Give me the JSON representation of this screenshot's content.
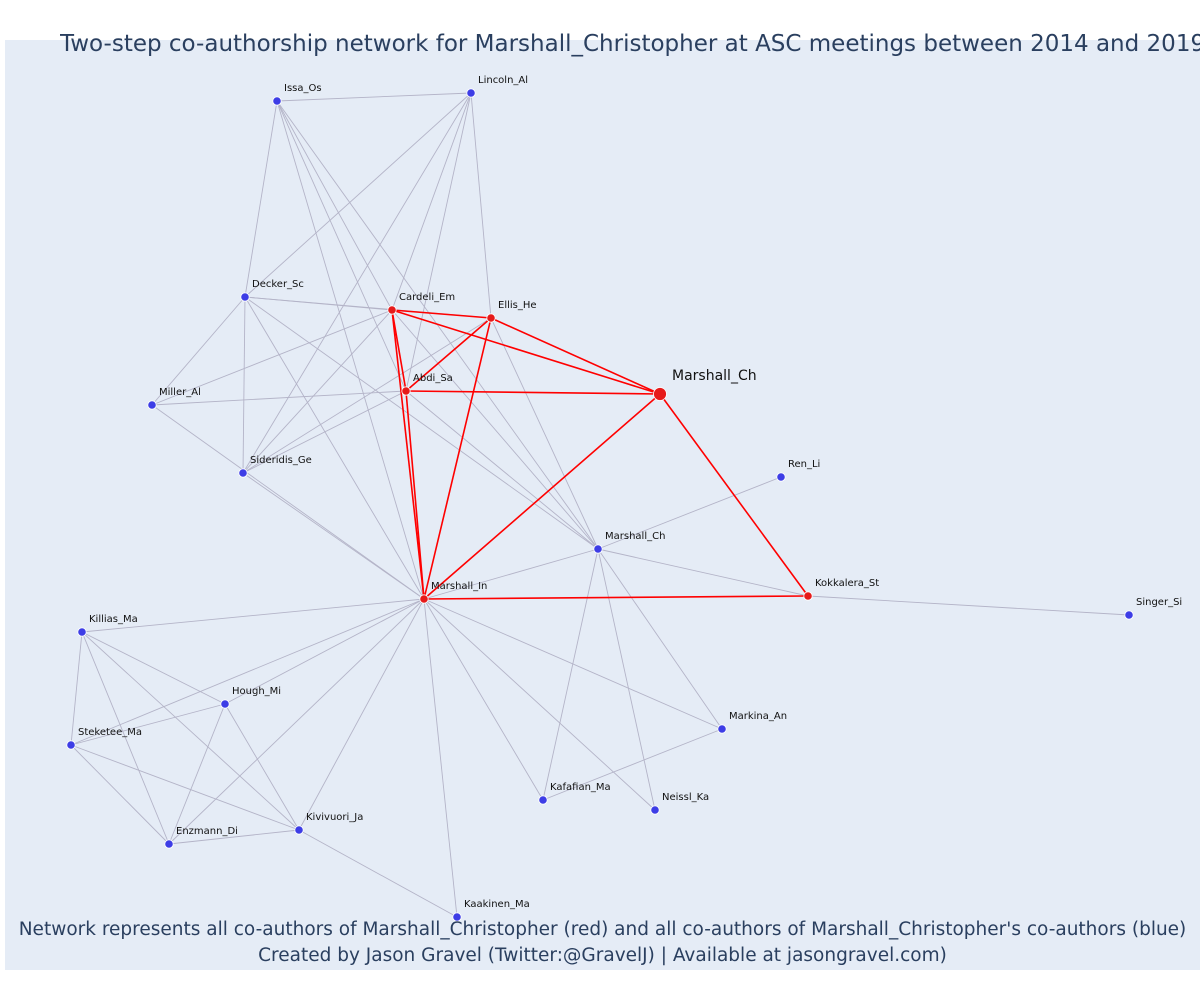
{
  "title": "Two-step co-authorship network for Marshall_Christopher at ASC meetings between 2014 and 2019",
  "caption_line1": "Network represents all co-authors of Marshall_Christopher (red) and all co-authors of Marshall_Christopher's co-authors (blue)",
  "caption_line2": "Created by Jason Gravel (Twitter:@GravelJ) | Available at jasongravel.com)",
  "colors": {
    "first_degree": "#e61a1a",
    "second_degree": "#3d3de6",
    "edge_first": "#ff0000",
    "edge_second": "#b4b4c8",
    "background": "#e5ecf6",
    "text": "#2a3f5f"
  },
  "nodes": [
    {
      "id": "marshall_ch_focal",
      "label": "Marshall_Ch",
      "group": "focal"
    },
    {
      "id": "cardeli_em",
      "label": "Cardeli_Em",
      "group": "first"
    },
    {
      "id": "ellis_he",
      "label": "Ellis_He",
      "group": "first"
    },
    {
      "id": "abdi_sa",
      "label": "Abdi_Sa",
      "group": "first"
    },
    {
      "id": "marshall_in",
      "label": "Marshall_In",
      "group": "first"
    },
    {
      "id": "kokkalera_st",
      "label": "Kokkalera_St",
      "group": "first"
    },
    {
      "id": "issa_os",
      "label": "Issa_Os",
      "group": "second"
    },
    {
      "id": "lincoln_al",
      "label": "Lincoln_Al",
      "group": "second"
    },
    {
      "id": "decker_sc",
      "label": "Decker_Sc",
      "group": "second"
    },
    {
      "id": "miller_al",
      "label": "Miller_Al",
      "group": "second"
    },
    {
      "id": "sideridis_ge",
      "label": "Sideridis_Ge",
      "group": "second"
    },
    {
      "id": "ren_li",
      "label": "Ren_Li",
      "group": "second"
    },
    {
      "id": "marshall_ch_2",
      "label": "Marshall_Ch",
      "group": "second"
    },
    {
      "id": "singer_si",
      "label": "Singer_Si",
      "group": "second"
    },
    {
      "id": "killias_ma",
      "label": "Killias_Ma",
      "group": "second"
    },
    {
      "id": "hough_mi",
      "label": "Hough_Mi",
      "group": "second"
    },
    {
      "id": "steketee_ma",
      "label": "Steketee_Ma",
      "group": "second"
    },
    {
      "id": "enzmann_di",
      "label": "Enzmann_Di",
      "group": "second"
    },
    {
      "id": "kivivuori_ja",
      "label": "Kivivuori_Ja",
      "group": "second"
    },
    {
      "id": "markina_an",
      "label": "Markina_An",
      "group": "second"
    },
    {
      "id": "kafafian_ma",
      "label": "Kafafian_Ma",
      "group": "second"
    },
    {
      "id": "neissl_ka",
      "label": "Neissl_Ka",
      "group": "second"
    },
    {
      "id": "kaakinen_ma",
      "label": "Kaakinen_Ma",
      "group": "second"
    }
  ],
  "edges": [
    [
      "marshall_ch_focal",
      "cardeli_em"
    ],
    [
      "marshall_ch_focal",
      "ellis_he"
    ],
    [
      "marshall_ch_focal",
      "abdi_sa"
    ],
    [
      "marshall_ch_focal",
      "marshall_in"
    ],
    [
      "marshall_ch_focal",
      "kokkalera_st"
    ],
    [
      "cardeli_em",
      "ellis_he"
    ],
    [
      "cardeli_em",
      "abdi_sa"
    ],
    [
      "cardeli_em",
      "marshall_in"
    ],
    [
      "ellis_he",
      "abdi_sa"
    ],
    [
      "ellis_he",
      "marshall_in"
    ],
    [
      "abdi_sa",
      "marshall_in"
    ],
    [
      "marshall_in",
      "kokkalera_st"
    ],
    [
      "issa_os",
      "lincoln_al"
    ],
    [
      "issa_os",
      "decker_sc"
    ],
    [
      "issa_os",
      "cardeli_em"
    ],
    [
      "issa_os",
      "abdi_sa"
    ],
    [
      "issa_os",
      "marshall_in"
    ],
    [
      "issa_os",
      "marshall_ch_2"
    ],
    [
      "lincoln_al",
      "decker_sc"
    ],
    [
      "lincoln_al",
      "cardeli_em"
    ],
    [
      "lincoln_al",
      "ellis_he"
    ],
    [
      "lincoln_al",
      "abdi_sa"
    ],
    [
      "lincoln_al",
      "sideridis_ge"
    ],
    [
      "decker_sc",
      "cardeli_em"
    ],
    [
      "decker_sc",
      "ellis_he"
    ],
    [
      "decker_sc",
      "miller_al"
    ],
    [
      "decker_sc",
      "sideridis_ge"
    ],
    [
      "decker_sc",
      "marshall_in"
    ],
    [
      "decker_sc",
      "marshall_ch_2"
    ],
    [
      "miller_al",
      "cardeli_em"
    ],
    [
      "miller_al",
      "abdi_sa"
    ],
    [
      "miller_al",
      "marshall_in"
    ],
    [
      "sideridis_ge",
      "cardeli_em"
    ],
    [
      "sideridis_ge",
      "ellis_he"
    ],
    [
      "sideridis_ge",
      "abdi_sa"
    ],
    [
      "sideridis_ge",
      "marshall_in"
    ],
    [
      "marshall_ch_2",
      "cardeli_em"
    ],
    [
      "marshall_ch_2",
      "ellis_he"
    ],
    [
      "marshall_ch_2",
      "abdi_sa"
    ],
    [
      "marshall_ch_2",
      "marshall_in"
    ],
    [
      "marshall_ch_2",
      "ren_li"
    ],
    [
      "marshall_ch_2",
      "kokkalera_st"
    ],
    [
      "marshall_ch_2",
      "markina_an"
    ],
    [
      "marshall_ch_2",
      "kafafian_ma"
    ],
    [
      "marshall_ch_2",
      "neissl_ka"
    ],
    [
      "kokkalera_st",
      "singer_si"
    ],
    [
      "marshall_in",
      "killias_ma"
    ],
    [
      "marshall_in",
      "hough_mi"
    ],
    [
      "marshall_in",
      "steketee_ma"
    ],
    [
      "marshall_in",
      "enzmann_di"
    ],
    [
      "marshall_in",
      "kivivuori_ja"
    ],
    [
      "marshall_in",
      "markina_an"
    ],
    [
      "marshall_in",
      "kafafian_ma"
    ],
    [
      "marshall_in",
      "neissl_ka"
    ],
    [
      "marshall_in",
      "kaakinen_ma"
    ],
    [
      "killias_ma",
      "hough_mi"
    ],
    [
      "killias_ma",
      "steketee_ma"
    ],
    [
      "killias_ma",
      "enzmann_di"
    ],
    [
      "killias_ma",
      "kivivuori_ja"
    ],
    [
      "hough_mi",
      "steketee_ma"
    ],
    [
      "hough_mi",
      "enzmann_di"
    ],
    [
      "hough_mi",
      "kivivuori_ja"
    ],
    [
      "steketee_ma",
      "enzmann_di"
    ],
    [
      "steketee_ma",
      "kivivuori_ja"
    ],
    [
      "enzmann_di",
      "kivivuori_ja"
    ],
    [
      "kivivuori_ja",
      "kaakinen_ma"
    ],
    [
      "kafafian_ma",
      "markina_an"
    ]
  ]
}
